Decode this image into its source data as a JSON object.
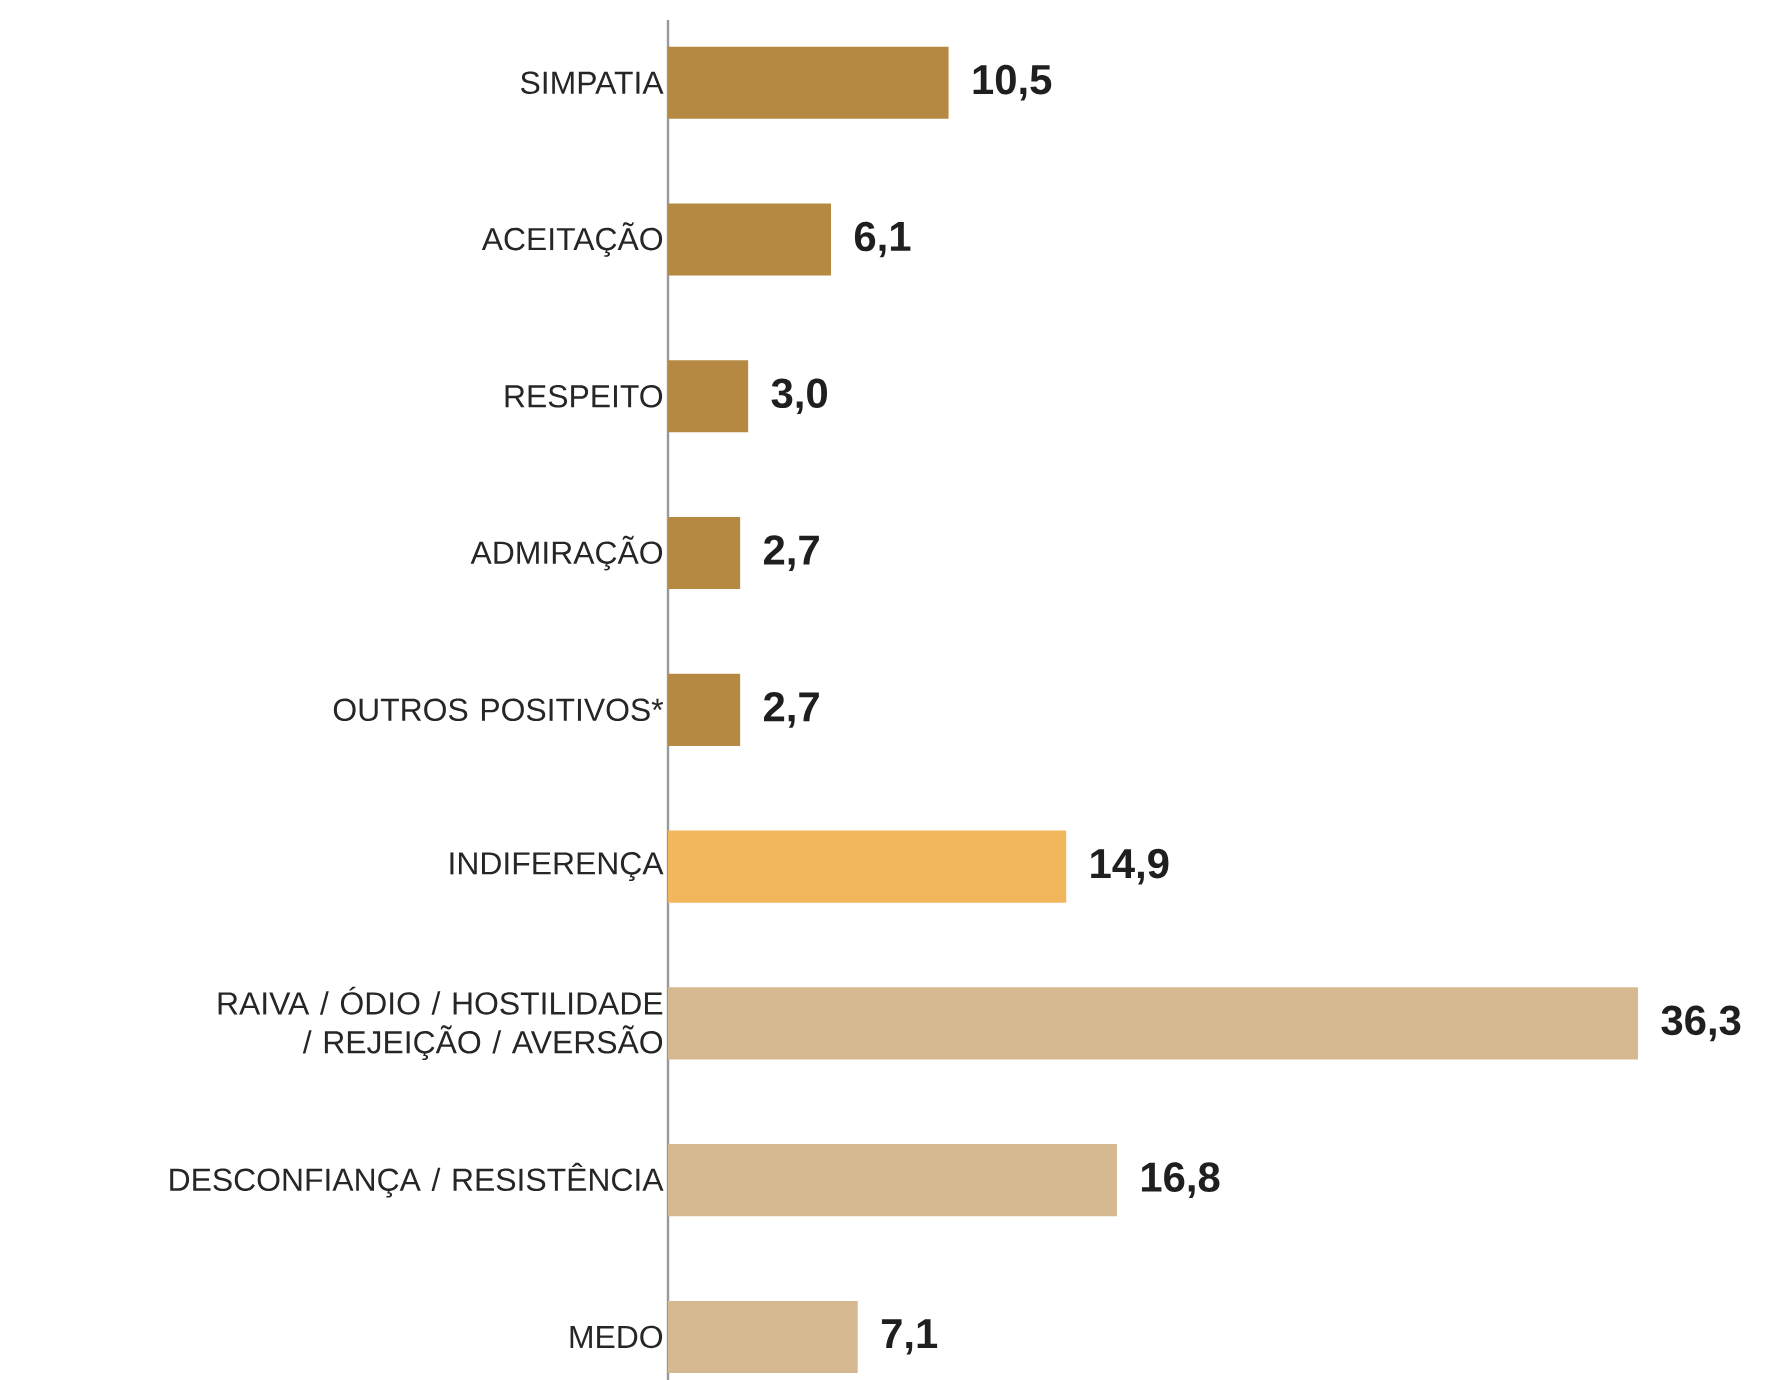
{
  "chart_data": {
    "type": "bar",
    "orientation": "horizontal",
    "categories": [
      "SIMPATIA",
      "ACEITAÇÃO",
      "RESPEITO",
      "ADMIRAÇÃO",
      "OUTROS POSITIVOS*",
      "INDIFERENÇA",
      "RAIVA / ÓDIO / HOSTILIDADE / REJEIÇÃO / AVERSÃO",
      "DESCONFIANÇA / RESISTÊNCIA",
      "MEDO"
    ],
    "values": [
      10.5,
      6.1,
      3.0,
      2.7,
      2.7,
      14.9,
      36.3,
      16.8,
      7.1
    ],
    "colors": [
      "#b68942",
      "#b68942",
      "#b68942",
      "#b68942",
      "#b68942",
      "#f2b75c",
      "#d6b991",
      "#d6b991",
      "#d6b991"
    ],
    "value_labels": [
      "10,5",
      "6,1",
      "3,0",
      "2,7",
      "2,7",
      "14,9",
      "36,3",
      "16,8",
      "7,1"
    ]
  }
}
